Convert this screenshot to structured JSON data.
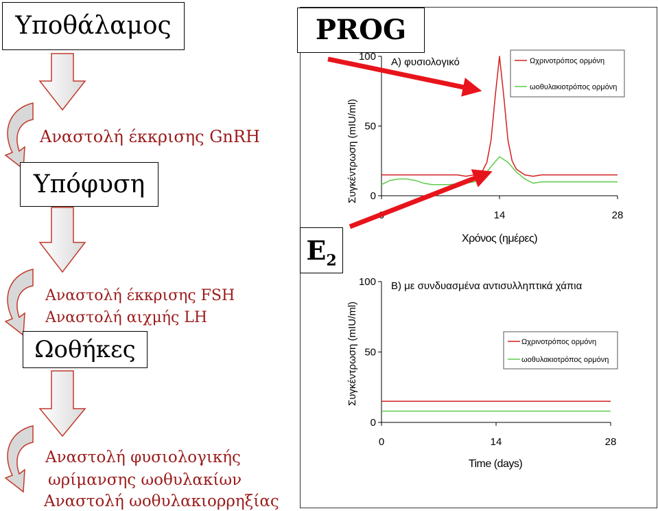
{
  "left": {
    "hypothalamus": "Υποθάλαμος",
    "gnrh": "Αναστολή έκκρισης GnRH",
    "pituitary": "Υπόφυση",
    "fsh": "Αναστολή έκκρισης FSH",
    "lh": "Αναστολή αιχμής LH",
    "ovaries": "Ωοθήκες",
    "mat1": "Αναστολή φυσιολογικής",
    "mat2": "ωρίμανσης ωοθυλακίων",
    "ovul": "Αναστολή ωοθυλακιορρηξίας"
  },
  "labels": {
    "prog": "PROG",
    "e2": "E",
    "e2_sub": "2"
  },
  "colors": {
    "lh": "#d21f1f",
    "fsh": "#5ecb4a",
    "arrow": "#e8141b",
    "text": "#9b1b1b"
  },
  "chart_data": [
    {
      "type": "line",
      "title": "Α) φυσιολογικό",
      "xlabel": "Χρόνος (ημέρες)",
      "ylabel": "Συγκέντρωση (mIU/ml)",
      "xlim": [
        0,
        28
      ],
      "ylim": [
        0,
        100
      ],
      "x_ticks": [
        "0",
        "14",
        "28"
      ],
      "y_ticks": [
        "0",
        "50",
        "100"
      ],
      "legend": "top-right",
      "series": [
        {
          "name": "Ωχρινοτρόπος ορμόνη",
          "x": [
            0,
            6,
            9,
            10,
            11,
            12,
            12.5,
            13,
            13.5,
            14,
            14.5,
            15,
            15.5,
            16,
            17,
            18,
            19,
            28
          ],
          "y": [
            15,
            15,
            15,
            14,
            15,
            18,
            24,
            40,
            72,
            100,
            72,
            40,
            25,
            19,
            15,
            14,
            15,
            15
          ]
        },
        {
          "name": "ωοθυλακιοτρόπος ορμόνη",
          "x": [
            0,
            1,
            2,
            3,
            4,
            5,
            6,
            8,
            10,
            11,
            12,
            13,
            14,
            15,
            16,
            17,
            18,
            19,
            28
          ],
          "y": [
            8,
            11,
            12,
            12,
            11,
            9,
            8,
            8,
            9,
            10,
            13,
            21,
            28,
            24,
            17,
            12,
            9,
            10,
            10
          ]
        }
      ]
    },
    {
      "type": "line",
      "title": "Β) με συνδυασμένα αντισυλληπτικά χάπια",
      "xlabel": "Time (days)",
      "ylabel": "Συγκέντρωση (mIU/ml)",
      "xlim": [
        0,
        28
      ],
      "ylim": [
        0,
        100
      ],
      "x_ticks": [
        "0",
        "14",
        "28"
      ],
      "y_ticks": [
        "0",
        "50",
        "100"
      ],
      "legend": "right",
      "series": [
        {
          "name": "Ωχρινοτρόπος ορμόνη",
          "x": [
            0,
            28
          ],
          "y": [
            15,
            15
          ]
        },
        {
          "name": "ωοθυλακιοτρόπος ορμόνη",
          "x": [
            0,
            28
          ],
          "y": [
            8,
            8
          ]
        }
      ]
    }
  ]
}
